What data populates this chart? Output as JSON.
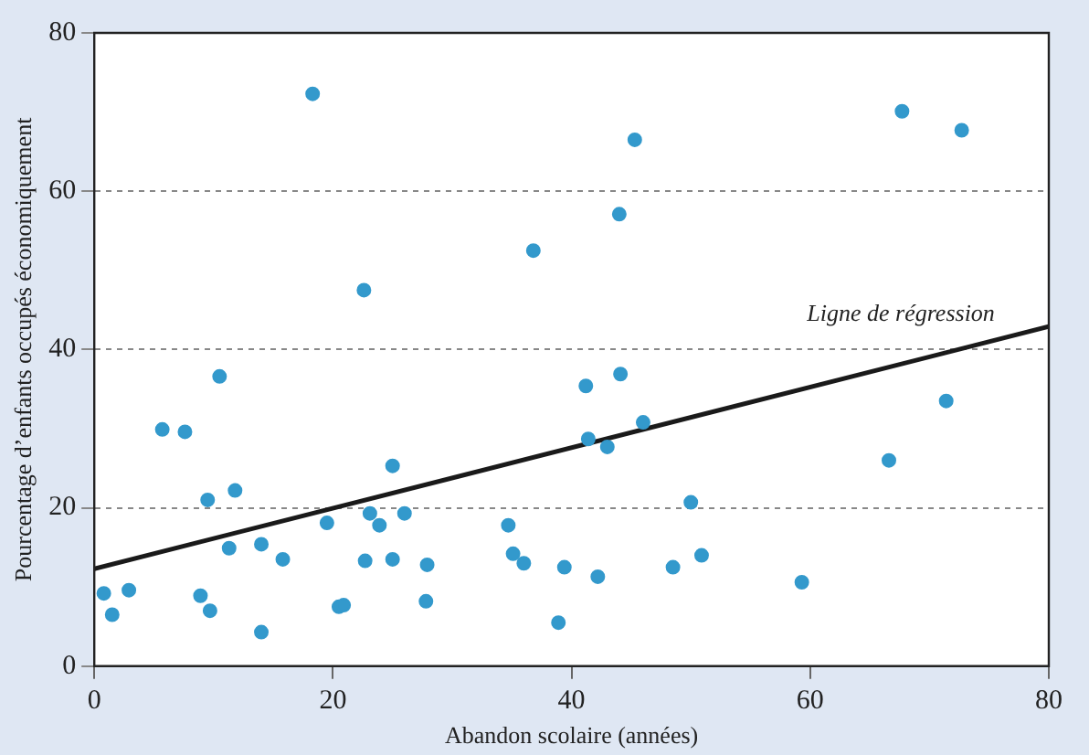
{
  "chart_data": {
    "type": "scatter",
    "xlabel": "Abandon scolaire (années)",
    "ylabel": "Pourcentage d’enfants occupés économiquement",
    "xlim": [
      0,
      80
    ],
    "xticks": [
      0,
      20,
      40,
      60,
      80
    ],
    "ylim": [
      0,
      80
    ],
    "yticks": [
      0,
      20,
      40,
      60,
      80
    ],
    "grid": "y",
    "legend": false,
    "marker": "circle",
    "series": [
      {
        "color": "#3399cc",
        "x": [
          18.3,
          22.6,
          36.8,
          44.0,
          45.3,
          67.7,
          72.7,
          10.5,
          5.7,
          7.6,
          11.8,
          9.5,
          25.0,
          41.2,
          44.1,
          41.4,
          43.0,
          46.0,
          50.0,
          66.6,
          71.4,
          11.3,
          14.0,
          15.8,
          19.5,
          23.1,
          23.9,
          26.0,
          22.7,
          25.0,
          27.9,
          27.8,
          20.5,
          20.9,
          14.0,
          0.8,
          1.5,
          2.9,
          8.9,
          9.7,
          34.7,
          35.1,
          36.0,
          39.4,
          42.2,
          48.5,
          50.9,
          38.9,
          59.3
        ],
        "values": [
          72.3,
          47.5,
          52.5,
          57.1,
          66.5,
          70.1,
          67.7,
          36.6,
          29.9,
          29.6,
          22.2,
          21.0,
          25.3,
          35.4,
          36.9,
          28.7,
          27.7,
          30.8,
          20.7,
          26.0,
          33.5,
          14.9,
          15.4,
          13.5,
          18.1,
          19.3,
          17.8,
          19.3,
          13.3,
          13.5,
          12.8,
          8.2,
          7.5,
          7.7,
          4.3,
          9.2,
          6.5,
          9.6,
          8.9,
          7.0,
          17.8,
          14.2,
          13.0,
          12.5,
          11.3,
          12.5,
          14.0,
          5.5,
          10.6
        ]
      },
      {
        "type": "line",
        "color": "#1a1a1a",
        "x": [
          0,
          80
        ],
        "values": [
          12.3,
          42.9
        ],
        "marker": "none"
      }
    ],
    "annotations": [
      "Ligne de régression"
    ]
  }
}
